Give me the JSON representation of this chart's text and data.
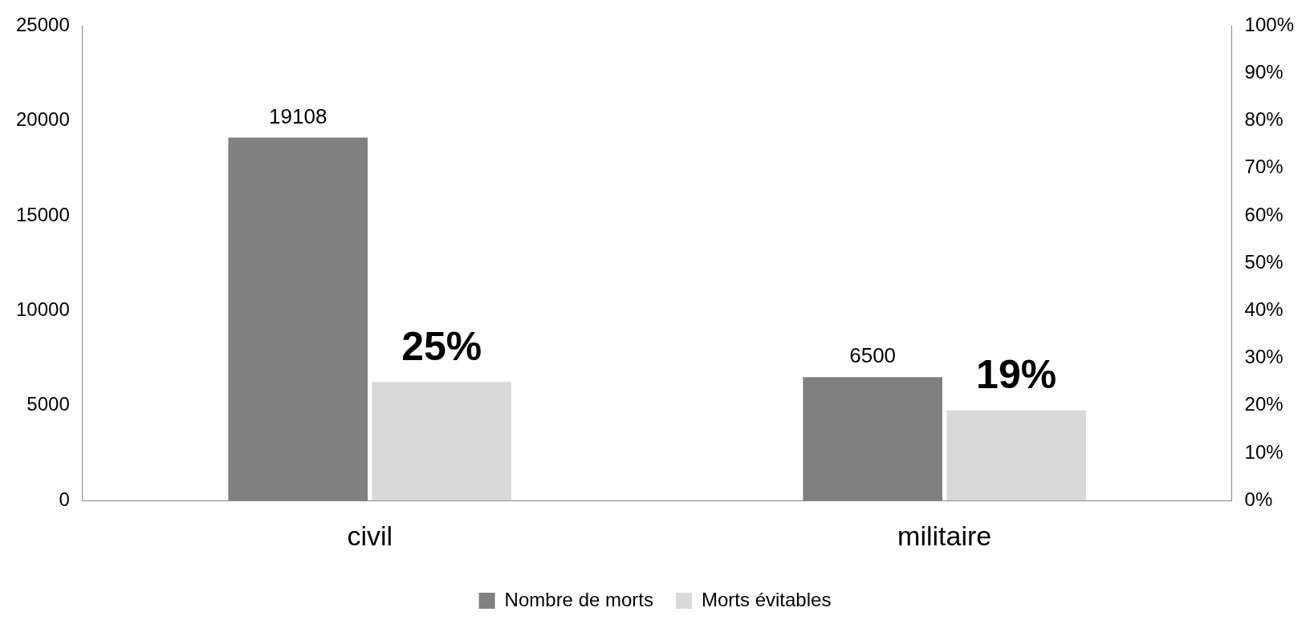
{
  "chart_data": {
    "type": "bar",
    "categories": [
      "civil",
      "militaire"
    ],
    "series": [
      {
        "name": "Nombre de morts",
        "color": "#808080",
        "values": [
          19108,
          6500
        ],
        "value_labels": [
          "19108",
          "6500"
        ]
      },
      {
        "name": "Morts évitables",
        "color": "#d9d9d9",
        "values": [
          25,
          19
        ],
        "axis": "y2",
        "value_labels": [
          "25%",
          "19%"
        ]
      }
    ],
    "ylim": [
      0,
      25000
    ],
    "yticks": [
      0,
      5000,
      10000,
      15000,
      20000,
      25000
    ],
    "y2lim": [
      0,
      100
    ],
    "y2ticks": [
      {
        "value": 0,
        "label": "0%"
      },
      {
        "value": 10,
        "label": "10%"
      },
      {
        "value": 20,
        "label": "20%"
      },
      {
        "value": 30,
        "label": "30%"
      },
      {
        "value": 40,
        "label": "40%"
      },
      {
        "value": 50,
        "label": "50%"
      },
      {
        "value": 60,
        "label": "60%"
      },
      {
        "value": 70,
        "label": "70%"
      },
      {
        "value": 80,
        "label": "80%"
      },
      {
        "value": 90,
        "label": "90%"
      },
      {
        "value": 100,
        "label": "100%"
      }
    ],
    "grid": false,
    "legend": "bottom"
  }
}
